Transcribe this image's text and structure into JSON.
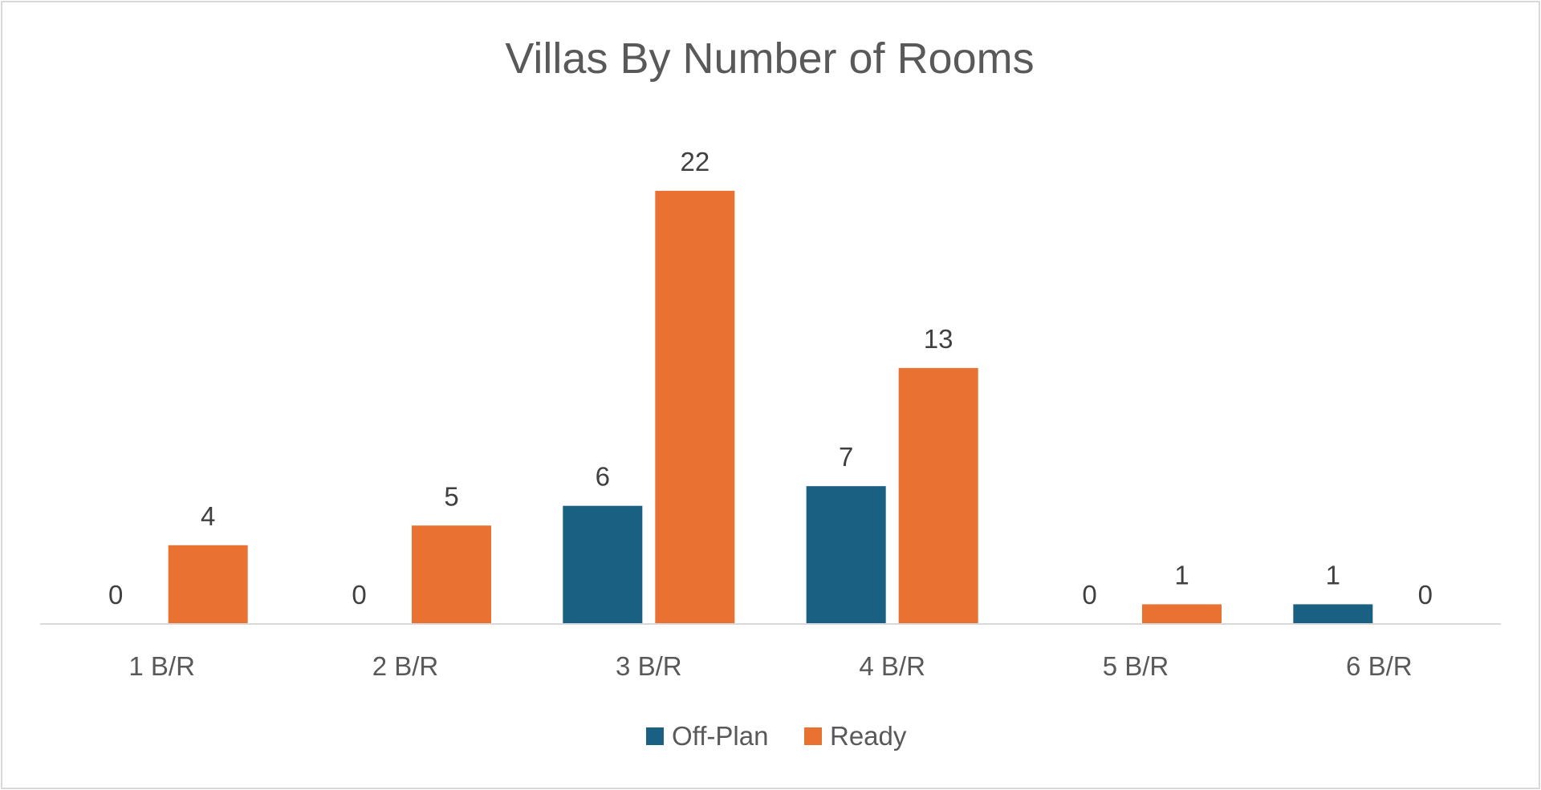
{
  "chart_data": {
    "type": "bar",
    "title": "Villas By Number of Rooms",
    "categories": [
      "1 B/R",
      "2 B/R",
      "3 B/R",
      "4 B/R",
      "5 B/R",
      "6 B/R"
    ],
    "series": [
      {
        "name": "Off-Plan",
        "color": "#1a6083",
        "values": [
          0,
          0,
          6,
          7,
          0,
          1
        ]
      },
      {
        "name": "Ready",
        "color": "#e97132",
        "values": [
          4,
          5,
          22,
          13,
          1,
          0
        ]
      }
    ],
    "ylim": [
      0,
      24
    ],
    "grid": false,
    "legend_position": "bottom",
    "axis_color": "#d9d9d9"
  }
}
